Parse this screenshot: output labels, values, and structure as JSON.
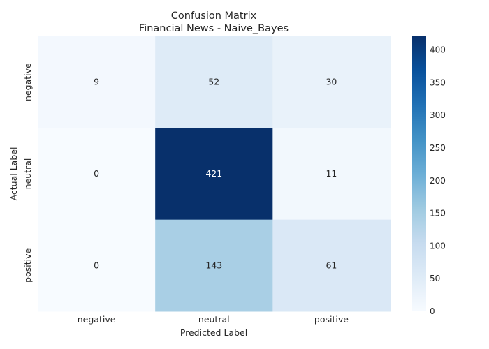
{
  "chart_data": {
    "type": "heatmap",
    "title": "Confusion Matrix",
    "subtitle": "Financial News - Naive_Bayes",
    "xlabel": "Predicted Label",
    "ylabel": "Actual Label",
    "x_categories": [
      "negative",
      "neutral",
      "positive"
    ],
    "y_categories": [
      "negative",
      "neutral",
      "positive"
    ],
    "values": [
      [
        9,
        52,
        30
      ],
      [
        0,
        421,
        11
      ],
      [
        0,
        143,
        61
      ]
    ],
    "colorbar": {
      "min": 0,
      "max": 421,
      "ticks": [
        0,
        50,
        100,
        150,
        200,
        250,
        300,
        350,
        400
      ]
    },
    "colormap": "Blues",
    "grid": false
  }
}
